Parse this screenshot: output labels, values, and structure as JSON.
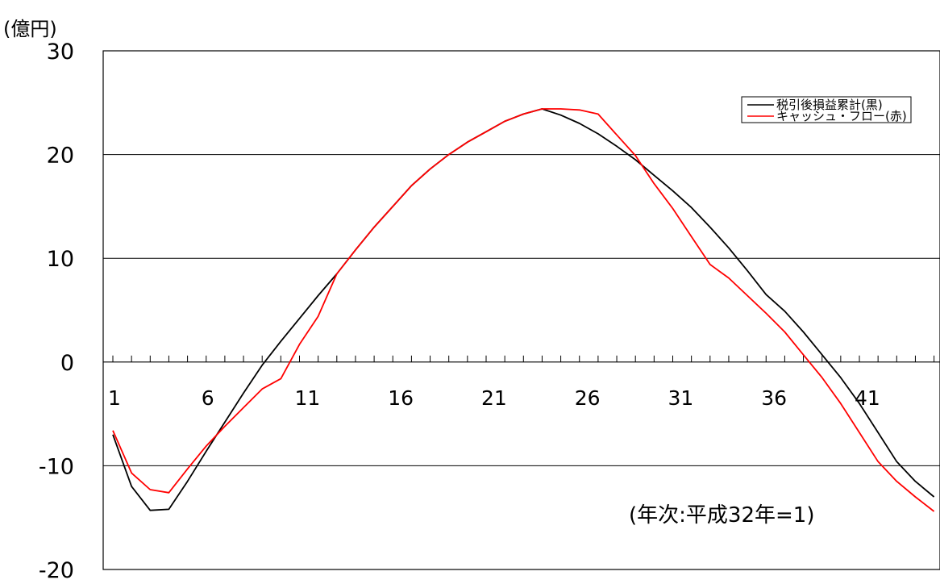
{
  "chart_data": {
    "type": "line",
    "unit_label": "(億円)",
    "note": "(年次:平成32年=1)",
    "x": [
      1,
      2,
      3,
      4,
      5,
      6,
      7,
      8,
      9,
      10,
      11,
      12,
      13,
      14,
      15,
      16,
      17,
      18,
      19,
      20,
      21,
      22,
      23,
      24,
      25,
      26,
      27,
      28,
      29,
      30,
      31,
      32,
      33,
      34,
      35,
      36,
      37,
      38,
      39,
      40,
      41,
      42,
      43,
      44,
      45
    ],
    "x_tick_labels": [
      "1",
      "6",
      "11",
      "16",
      "21",
      "26",
      "31",
      "36",
      "41"
    ],
    "y_tick_labels": [
      "30",
      "20",
      "10",
      "0",
      "-10",
      "-20"
    ],
    "ylim": [
      -20,
      30
    ],
    "xlim": [
      0.5,
      45.5
    ],
    "grid": "horizontal",
    "legend_position": "top-right",
    "series": [
      {
        "name": "税引後損益累計(黒)",
        "color": "#000000",
        "values": [
          -7.0,
          -12.0,
          -14.3,
          -14.2,
          -11.5,
          -8.6,
          -5.8,
          -3.0,
          -0.3,
          2.0,
          4.2,
          6.4,
          8.5,
          10.8,
          13.0,
          15.0,
          17.0,
          18.6,
          20.0,
          21.2,
          22.2,
          23.2,
          23.9,
          24.4,
          23.8,
          23.0,
          22.0,
          20.8,
          19.5,
          18.0,
          16.5,
          14.9,
          13.0,
          11.0,
          8.8,
          6.5,
          4.9,
          2.9,
          0.7,
          -1.5,
          -4.0,
          -6.8,
          -9.6,
          -11.5,
          -13.0
        ]
      },
      {
        "name": "キャッシュ・フロー(赤)",
        "color": "#ff0000",
        "values": [
          -6.6,
          -10.7,
          -12.3,
          -12.6,
          -10.3,
          -8.1,
          -6.2,
          -4.4,
          -2.6,
          -1.6,
          1.7,
          4.4,
          8.5,
          10.8,
          13.0,
          15.0,
          17.0,
          18.6,
          20.0,
          21.2,
          22.2,
          23.2,
          23.9,
          24.4,
          24.4,
          24.3,
          23.9,
          21.9,
          19.9,
          17.2,
          14.8,
          12.1,
          9.4,
          8.1,
          6.4,
          4.7,
          2.9,
          0.7,
          -1.5,
          -4.0,
          -6.8,
          -9.6,
          -11.5,
          -13.0,
          -14.4
        ]
      }
    ]
  }
}
